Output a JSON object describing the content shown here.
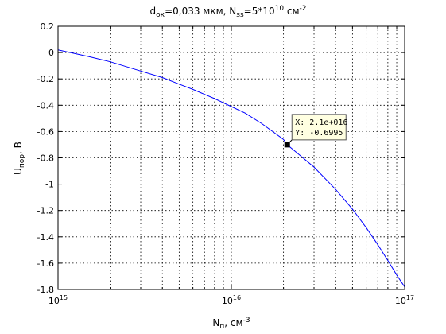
{
  "chart_data": {
    "type": "line",
    "title": {
      "d_sub": "ок",
      "middle": "=0,033 мкм, N",
      "ss_sub": "ss",
      "tail": "=5*10",
      "exp1": "10",
      "unit": " см",
      "exp2": "-2"
    },
    "xlabel": {
      "base": "N",
      "sub": "п",
      "unit": ", см",
      "exp": "-3"
    },
    "ylabel": {
      "base": "U",
      "sub": "пор",
      "unit": ", В"
    },
    "xscale": "log",
    "xlim": [
      1000000000000000.0,
      1e+17
    ],
    "ylim": [
      -1.8,
      0.2
    ],
    "grid": true,
    "x_ticks": [
      {
        "value": 1000000000000000.0,
        "base": "10",
        "exp": "15"
      },
      {
        "value": 1e+16,
        "base": "10",
        "exp": "16"
      },
      {
        "value": 1e+17,
        "base": "10",
        "exp": "17"
      }
    ],
    "y_ticks": [
      {
        "value": 0.2,
        "label": "0.2"
      },
      {
        "value": 0,
        "label": "0"
      },
      {
        "value": -0.2,
        "label": "-0.2"
      },
      {
        "value": -0.4,
        "label": "-0.4"
      },
      {
        "value": -0.6,
        "label": "-0.6"
      },
      {
        "value": -0.8,
        "label": "-0.8"
      },
      {
        "value": -1,
        "label": "-1"
      },
      {
        "value": -1.2,
        "label": "-1.2"
      },
      {
        "value": -1.4,
        "label": "-1.4"
      },
      {
        "value": -1.6,
        "label": "-1.6"
      },
      {
        "value": -1.8,
        "label": "-1.8"
      }
    ],
    "series": [
      {
        "color": "#0000ff",
        "x": [
          1000000000000000.0,
          1500000000000000.0,
          2000000000000000.0,
          3000000000000000.0,
          4000000000000000.0,
          5000000000000000.0,
          6000000000000000.0,
          8000000000000000.0,
          1e+16,
          1.2e+16,
          1.5e+16,
          2e+16,
          2.1e+16,
          3e+16,
          4e+16,
          5e+16,
          6e+16,
          7e+16,
          8e+16,
          9e+16,
          1e+17
        ],
        "y": [
          0.02,
          -0.03,
          -0.07,
          -0.14,
          -0.19,
          -0.24,
          -0.28,
          -0.35,
          -0.41,
          -0.46,
          -0.54,
          -0.66,
          -0.6995,
          -0.87,
          -1.04,
          -1.19,
          -1.33,
          -1.46,
          -1.58,
          -1.69,
          -1.78
        ]
      }
    ],
    "datatip": {
      "x": 2.1e+16,
      "y": -0.6995,
      "x_text": "X: 2.1e+016",
      "y_text": "Y: -0.6995"
    }
  }
}
